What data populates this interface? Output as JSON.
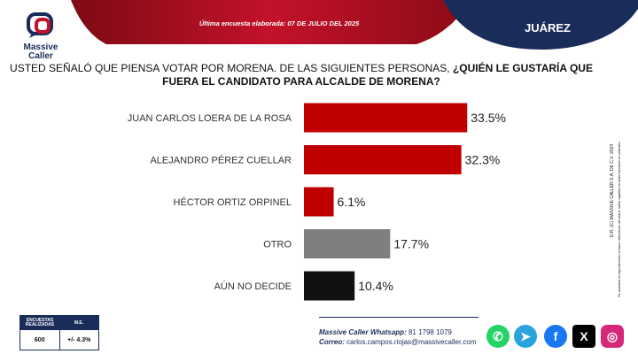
{
  "header": {
    "logo_line1": "Massive",
    "logo_line2": "Caller",
    "survey_date": "Última encuesta elaborada: 07 DE JULIO DEL 2025",
    "city": "JUÁREZ"
  },
  "question": {
    "plain": "USTED SEÑALÓ QUE PIENSA VOTAR POR MORENA. DE LAS SIGUIENTES PERSONAS, ",
    "bold": "¿QUIÉN LE GUSTARÍA QUE FUERA EL CANDIDATO PARA ALCALDE DE MORENA?"
  },
  "chart_data": {
    "type": "bar",
    "orientation": "horizontal",
    "categories": [
      "JUAN CARLOS LOERA DE LA ROSA",
      "ALEJANDRO PÉREZ CUELLAR",
      "HÉCTOR ORTIZ ORPINEL",
      "OTRO",
      "AÚN NO DECIDE"
    ],
    "values": [
      33.5,
      32.3,
      6.1,
      17.7,
      10.4
    ],
    "value_labels": [
      "33.5%",
      "32.3%",
      "6.1%",
      "17.7%",
      "10.4%"
    ],
    "colors": [
      "#c00000",
      "#c00000",
      "#c00000",
      "#7f7f7f",
      "#111111"
    ],
    "xlim": [
      0,
      40
    ],
    "grid": false
  },
  "side_note": {
    "line1": "D.R. (C) MASSIVE CALLER S.A. DE C.V. 2024",
    "line2": "Se autoriza la reproducción si hace referencia del autor, salvo aquella en vista electoral al contrario."
  },
  "stats": {
    "col1_label": "ENCUESTAS REALIZADAS",
    "col2_label": "M.E.",
    "col1_value": "600",
    "col2_value": "+/- 4.3%"
  },
  "contact": {
    "whatsapp_label": "Massive Caller Whatsapp:",
    "whatsapp_number": "81 1798 1079",
    "email_label": "Correo:",
    "email": "carlos.campos.riojas@massivecaller.com"
  },
  "social_icons": [
    "whatsapp-icon",
    "telegram-icon",
    "facebook-icon",
    "x-icon",
    "instagram-icon"
  ],
  "colors": {
    "navy": "#1a2d5a",
    "red": "#b0101e",
    "dark_red": "#8c0b17"
  }
}
